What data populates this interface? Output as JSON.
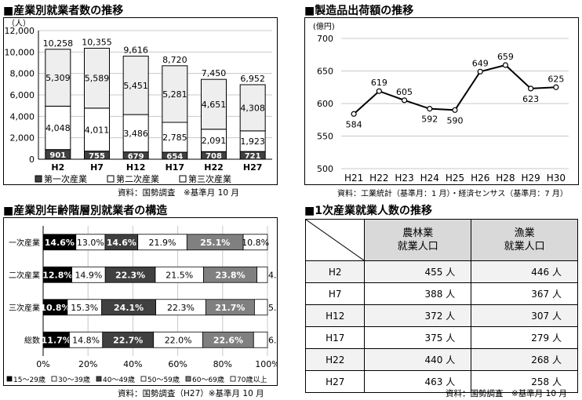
{
  "titles": {
    "employees_by_industry": "■産業別就業者数の推移",
    "shipment_value": "■製造品出荷額の推移",
    "age_structure": "■産業別年齢階層別就業者の構造",
    "primary_workers": "■1次産業就業人数の推移"
  },
  "sources": {
    "employees_by_industry": "資料：国勢調査　※基準月 10 月",
    "shipment_value": "資料：工業統計（基準月：1 月）・経済センサス（基準月：7 月）",
    "age_structure": "資料：国勢調査（H27）※基準月 10 月",
    "primary_workers": "資料：国勢調査　※基準月 10 月"
  },
  "chart_data": [
    {
      "type": "bar",
      "stacked": true,
      "title": "産業別就業者数の推移",
      "unit_label": "（人）",
      "categories": [
        "H2",
        "H7",
        "H12",
        "H17",
        "H22",
        "H27"
      ],
      "series": [
        {
          "name": "第一次産業",
          "values": [
            901,
            755,
            679,
            654,
            708,
            721
          ],
          "color": "#404040"
        },
        {
          "name": "第二次産業",
          "values": [
            4048,
            4011,
            3486,
            2785,
            2091,
            1923
          ],
          "color": "#ffffff"
        },
        {
          "name": "第三次産業",
          "values": [
            5309,
            5589,
            5451,
            5281,
            4651,
            4308
          ],
          "color": "#eeeeee"
        }
      ],
      "totals": [
        10258,
        10355,
        9616,
        8720,
        7450,
        6952
      ],
      "total_labels": [
        "10,258",
        "10,355",
        "9,616",
        "8,720",
        "7,450",
        "6,952"
      ],
      "ylim": [
        0,
        12000
      ],
      "yticks": [
        "0",
        "2,000",
        "4,000",
        "6,000",
        "8,000",
        "10,000",
        "12,000"
      ],
      "grid": true,
      "legend": "bottom"
    },
    {
      "type": "line",
      "title": "製造品出荷額の推移",
      "unit_label": "(億円)",
      "categories": [
        "H21",
        "H22",
        "H23",
        "H24",
        "H25",
        "H26",
        "H28",
        "H29",
        "H30"
      ],
      "values": [
        584,
        619,
        605,
        592,
        590,
        649,
        659,
        623,
        625
      ],
      "ylim": [
        500,
        700
      ],
      "yticks": [
        "500",
        "550",
        "600",
        "650",
        "700"
      ],
      "grid": true
    },
    {
      "type": "bar",
      "orientation": "horizontal",
      "stacked_percent": true,
      "title": "産業別年齢階層別就業者の構造",
      "categories": [
        "一次産業",
        "二次産業",
        "三次産業",
        "総数"
      ],
      "series": [
        {
          "name": "15～29歳",
          "values": [
            14.6,
            12.8,
            10.8,
            11.7
          ],
          "color": "#000000",
          "text": "#ffffff"
        },
        {
          "name": "30～39歳",
          "values": [
            13.0,
            14.9,
            15.3,
            14.8
          ],
          "color": "#ffffff",
          "text": "#000000"
        },
        {
          "name": "40～49歳",
          "values": [
            14.6,
            22.3,
            24.1,
            22.7
          ],
          "color": "#404040",
          "text": "#ffffff"
        },
        {
          "name": "50～59歳",
          "values": [
            21.9,
            21.5,
            22.3,
            22.0
          ],
          "color": "#ffffff",
          "text": "#000000"
        },
        {
          "name": "60～69歳",
          "values": [
            25.1,
            23.8,
            21.7,
            22.6
          ],
          "color": "#808080",
          "text": "#ffffff"
        },
        {
          "name": "70歳以上",
          "values": [
            10.8,
            4.7,
            5.8,
            6.2
          ],
          "color": "#ffffff",
          "text": "#000000"
        }
      ],
      "xlim": [
        0,
        100
      ],
      "xticks": [
        "0%",
        "20%",
        "40%",
        "60%",
        "80%",
        "100%"
      ],
      "grid": true,
      "legend": "bottom"
    },
    {
      "type": "table",
      "title": "1次産業就業人数の推移",
      "headers": [
        "農林業\n就業人口",
        "漁業\n就業人口"
      ],
      "rows": [
        {
          "era": "H2",
          "agri": "455 人",
          "fish": "446 人"
        },
        {
          "era": "H7",
          "agri": "388 人",
          "fish": "367 人"
        },
        {
          "era": "H12",
          "agri": "372 人",
          "fish": "307 人"
        },
        {
          "era": "H17",
          "agri": "375 人",
          "fish": "279 人"
        },
        {
          "era": "H22",
          "agri": "440 人",
          "fish": "268 人"
        },
        {
          "era": "H27",
          "agri": "463 人",
          "fish": "258 人"
        }
      ]
    }
  ]
}
